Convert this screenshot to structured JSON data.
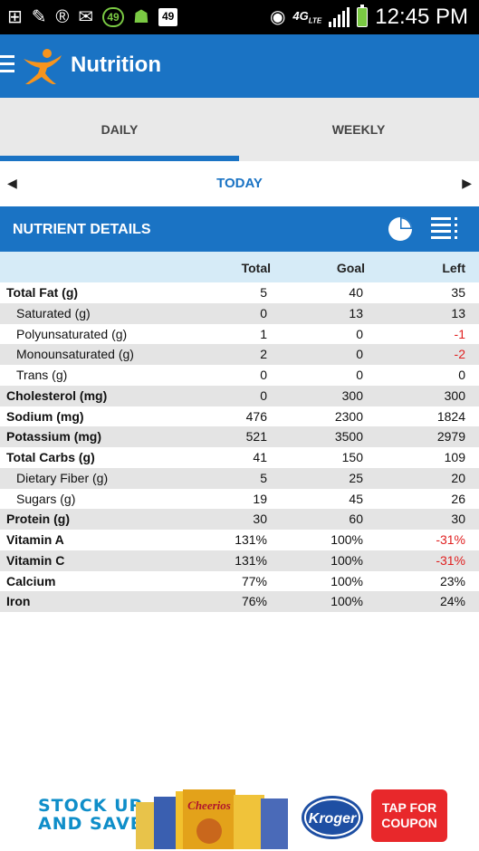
{
  "status_bar": {
    "badge_count": "49",
    "box_count": "49",
    "network": "4G",
    "network_sub": "LTE",
    "time": "12:45 PM"
  },
  "app_bar": {
    "title": "Nutrition"
  },
  "tabs": [
    {
      "label": "DAILY",
      "selected": true
    },
    {
      "label": "WEEKLY",
      "selected": false
    }
  ],
  "date_nav": {
    "label": "TODAY",
    "prev_icon": "left-arrow",
    "next_icon": "right-arrow"
  },
  "section": {
    "title": "NUTRIENT DETAILS",
    "icons": [
      "pie-chart-icon",
      "list-icon"
    ]
  },
  "table": {
    "headers": {
      "total": "Total",
      "goal": "Goal",
      "left": "Left"
    },
    "rows": [
      {
        "name": "Total Fat (g)",
        "total": "5",
        "goal": "40",
        "left": "35",
        "kind": "main"
      },
      {
        "name": "Saturated (g)",
        "total": "0",
        "goal": "13",
        "left": "13",
        "kind": "sub"
      },
      {
        "name": "Polyunsaturated (g)",
        "total": "1",
        "goal": "0",
        "left": "-1",
        "kind": "sub",
        "negative": true
      },
      {
        "name": "Monounsaturated (g)",
        "total": "2",
        "goal": "0",
        "left": "-2",
        "kind": "sub",
        "negative": true
      },
      {
        "name": "Trans (g)",
        "total": "0",
        "goal": "0",
        "left": "0",
        "kind": "sub"
      },
      {
        "name": "Cholesterol (mg)",
        "total": "0",
        "goal": "300",
        "left": "300",
        "kind": "main"
      },
      {
        "name": "Sodium (mg)",
        "total": "476",
        "goal": "2300",
        "left": "1824",
        "kind": "main"
      },
      {
        "name": "Potassium (mg)",
        "total": "521",
        "goal": "3500",
        "left": "2979",
        "kind": "main"
      },
      {
        "name": "Total Carbs (g)",
        "total": "41",
        "goal": "150",
        "left": "109",
        "kind": "main"
      },
      {
        "name": "Dietary Fiber (g)",
        "total": "5",
        "goal": "25",
        "left": "20",
        "kind": "sub"
      },
      {
        "name": "Sugars (g)",
        "total": "19",
        "goal": "45",
        "left": "26",
        "kind": "sub"
      },
      {
        "name": "Protein (g)",
        "total": "30",
        "goal": "60",
        "left": "30",
        "kind": "main"
      },
      {
        "name": "Vitamin A",
        "total": "131%",
        "goal": "100%",
        "left": "-31%",
        "kind": "main",
        "negative": true
      },
      {
        "name": "Vitamin C",
        "total": "131%",
        "goal": "100%",
        "left": "-31%",
        "kind": "main",
        "negative": true
      },
      {
        "name": "Calcium",
        "total": "77%",
        "goal": "100%",
        "left": "23%",
        "kind": "main"
      },
      {
        "name": "Iron",
        "total": "76%",
        "goal": "100%",
        "left": "24%",
        "kind": "main"
      }
    ]
  },
  "ad": {
    "headline_line1": "STOCK UP",
    "headline_line2": "AND SAVE!",
    "brand": "Kroger",
    "product": "Cheerios",
    "cta_line1": "TAP FOR",
    "cta_line2": "COUPON"
  },
  "colors": {
    "primary": "#1a73c4",
    "header_row": "#d6ebf7",
    "negative": "#e02020",
    "stripe": "#e4e4e4"
  }
}
